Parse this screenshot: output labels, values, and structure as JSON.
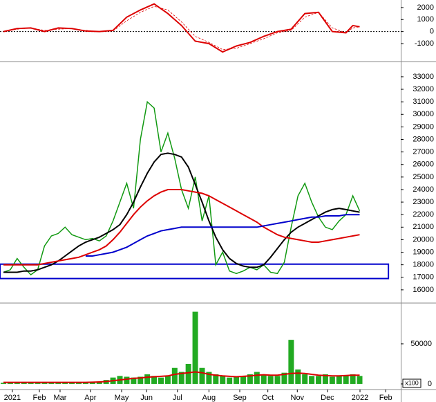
{
  "chart_data": [
    {
      "type": "line",
      "xlim": [
        -2.5,
        56
      ],
      "ylim": [
        -2440,
        2570
      ],
      "yticks": [
        -1000,
        0,
        1000,
        2000
      ],
      "x": [
        -2,
        0,
        2,
        4,
        6,
        8,
        10,
        12,
        14,
        16,
        18,
        20,
        22,
        24,
        26,
        28,
        30,
        32,
        34,
        36,
        38,
        40,
        42,
        44,
        46,
        48,
        49,
        50
      ],
      "series": [
        {
          "color": "#dd0000",
          "width": 2,
          "values": [
            0,
            250,
            300,
            0,
            300,
            250,
            50,
            0,
            100,
            1200,
            1800,
            2300,
            1500,
            500,
            -800,
            -1000,
            -1700,
            -1200,
            -900,
            -400,
            0,
            200,
            1500,
            1600,
            0,
            -100,
            500,
            400
          ]
        },
        {
          "color": "#dd0000",
          "width": 0.8,
          "dashed": true,
          "values": [
            0,
            200,
            300,
            100,
            200,
            250,
            100,
            0,
            50,
            900,
            1600,
            2100,
            1800,
            800,
            -400,
            -900,
            -1500,
            -1400,
            -1000,
            -600,
            -100,
            100,
            1200,
            1600,
            300,
            -100,
            300,
            400
          ]
        }
      ]
    },
    {
      "type": "line",
      "xlim": [
        -2.5,
        56
      ],
      "ylim": [
        15000,
        34100
      ],
      "yticks": [
        16000,
        17000,
        18000,
        19000,
        20000,
        21000,
        22000,
        23000,
        24000,
        25000,
        26000,
        27000,
        28000,
        29000,
        30000,
        31000,
        32000,
        33000
      ],
      "band": {
        "x": [
          -2.5,
          54.2
        ],
        "y": [
          16900,
          18050
        ],
        "color": "#0000cc"
      },
      "x": [
        -2,
        -1,
        0,
        1,
        2,
        3,
        4,
        5,
        6,
        7,
        8,
        9,
        10,
        11,
        12,
        13,
        14,
        15,
        16,
        17,
        18,
        19,
        20,
        21,
        22,
        23,
        24,
        25,
        26,
        27,
        28,
        29,
        30,
        31,
        32,
        33,
        34,
        35,
        36,
        37,
        38,
        39,
        40,
        41,
        42,
        43,
        44,
        45,
        46,
        47,
        48,
        49,
        50
      ],
      "series": [
        {
          "color": "#119911",
          "width": 1.5,
          "values": [
            17400,
            17600,
            18500,
            17800,
            17200,
            17600,
            19500,
            20300,
            20500,
            21000,
            20400,
            20200,
            20000,
            20100,
            19900,
            20300,
            21500,
            23000,
            24500,
            22500,
            28000,
            31000,
            30500,
            27000,
            28500,
            26500,
            24000,
            22500,
            25000,
            21500,
            23500,
            18000,
            19000,
            17500,
            17300,
            17500,
            17800,
            17600,
            18000,
            17400,
            17300,
            18200,
            21000,
            23500,
            24500,
            23000,
            21800,
            21000,
            20800,
            21500,
            22000,
            23500,
            22300
          ]
        },
        {
          "color": "#000000",
          "width": 2,
          "values": [
            17400,
            17400,
            17400,
            17500,
            17500,
            17600,
            17800,
            18000,
            18300,
            18700,
            19100,
            19500,
            19800,
            20000,
            20200,
            20500,
            20800,
            21200,
            22000,
            23000,
            24200,
            25300,
            26200,
            26800,
            26900,
            26800,
            26600,
            25800,
            24400,
            23000,
            21500,
            20200,
            19200,
            18500,
            18100,
            17900,
            17800,
            17800,
            18000,
            18600,
            19300,
            20000,
            20600,
            21000,
            21300,
            21600,
            21900,
            22200,
            22400,
            22500,
            22400,
            22300,
            22200
          ]
        },
        {
          "color": "#dd0000",
          "width": 2,
          "values": [
            18000,
            18000,
            18000,
            18000,
            18000,
            18000,
            18100,
            18200,
            18300,
            18400,
            18500,
            18600,
            18800,
            19000,
            19200,
            19500,
            20000,
            20600,
            21300,
            22000,
            22600,
            23100,
            23500,
            23800,
            24000,
            24000,
            24000,
            23900,
            23800,
            23700,
            23500,
            23200,
            22900,
            22600,
            22300,
            22000,
            21700,
            21400,
            21000,
            20700,
            20400,
            20200,
            20100,
            20000,
            19900,
            19800,
            19800,
            19900,
            20000,
            20100,
            20200,
            20300,
            20400
          ]
        },
        {
          "color": "#0000cc",
          "width": 2,
          "values": [
            null,
            null,
            null,
            null,
            null,
            null,
            null,
            null,
            null,
            null,
            null,
            null,
            18700,
            18700,
            18800,
            18900,
            19000,
            19200,
            19400,
            19700,
            20000,
            20300,
            20500,
            20700,
            20800,
            20900,
            21000,
            21000,
            21000,
            21000,
            21000,
            21000,
            21000,
            21000,
            21000,
            21000,
            21000,
            21000,
            21100,
            21200,
            21300,
            21400,
            21500,
            21600,
            21700,
            21800,
            21800,
            21900,
            21900,
            21900,
            22000,
            22000,
            22000
          ]
        }
      ]
    },
    {
      "type": "bar",
      "xlim": [
        -2.5,
        56
      ],
      "ylim": [
        -6100,
        99100
      ],
      "yticks": [
        0,
        50000
      ],
      "unit": "x100",
      "color": "#22aa22",
      "xticks": [
        {
          "value": -0.7,
          "label": "2021"
        },
        {
          "value": 3.25,
          "label": "Feb"
        },
        {
          "value": 6.27,
          "label": "Mar"
        },
        {
          "value": 10.7,
          "label": "Apr"
        },
        {
          "value": 15.25,
          "label": "May"
        },
        {
          "value": 18.9,
          "label": "Jun"
        },
        {
          "value": 23.4,
          "label": "Jul"
        },
        {
          "value": 28,
          "label": "Aug"
        },
        {
          "value": 32.5,
          "label": "Sep"
        },
        {
          "value": 36.6,
          "label": "Oct"
        },
        {
          "value": 40.9,
          "label": "Nov"
        },
        {
          "value": 45.3,
          "label": "Dec"
        },
        {
          "value": 50.05,
          "label": "2022"
        },
        {
          "value": 53.8,
          "label": "Feb"
        }
      ],
      "x": [
        -2,
        -1,
        0,
        1,
        2,
        3,
        4,
        5,
        6,
        7,
        8,
        9,
        10,
        11,
        12,
        13,
        14,
        15,
        16,
        17,
        18,
        19,
        20,
        21,
        22,
        23,
        24,
        25,
        26,
        27,
        28,
        29,
        30,
        31,
        32,
        33,
        34,
        35,
        36,
        37,
        38,
        39,
        40,
        41,
        42,
        43,
        44,
        45,
        46,
        47,
        48,
        49,
        50
      ],
      "values": [
        1500,
        1500,
        2000,
        1500,
        1500,
        1800,
        2000,
        2000,
        1800,
        1800,
        1800,
        2000,
        2000,
        2500,
        3000,
        5000,
        8000,
        10000,
        9000,
        8000,
        9000,
        12000,
        10000,
        8000,
        10000,
        20000,
        15000,
        25000,
        90000,
        20000,
        15000,
        12000,
        10000,
        8000,
        9000,
        10000,
        12000,
        15000,
        12000,
        10000,
        10000,
        14000,
        55000,
        18000,
        12000,
        10000,
        10000,
        12000,
        9000,
        10000,
        11000,
        12000,
        10000
      ],
      "series": [
        {
          "color": "#dd0000",
          "width": 2,
          "values": [
            2000,
            2000,
            2000,
            2000,
            2000,
            2000,
            2000,
            2000,
            2000,
            2000,
            2000,
            2000,
            2000,
            2200,
            2500,
            3000,
            4000,
            5000,
            6000,
            7000,
            7500,
            8500,
            9000,
            9500,
            10000,
            12000,
            13000,
            14000,
            15000,
            14000,
            12000,
            11000,
            10000,
            9500,
            9000,
            9500,
            10000,
            11000,
            11500,
            11000,
            11000,
            12000,
            13000,
            13500,
            13000,
            12000,
            11000,
            10500,
            10000,
            10000,
            10500,
            11000,
            11000
          ]
        }
      ]
    }
  ]
}
